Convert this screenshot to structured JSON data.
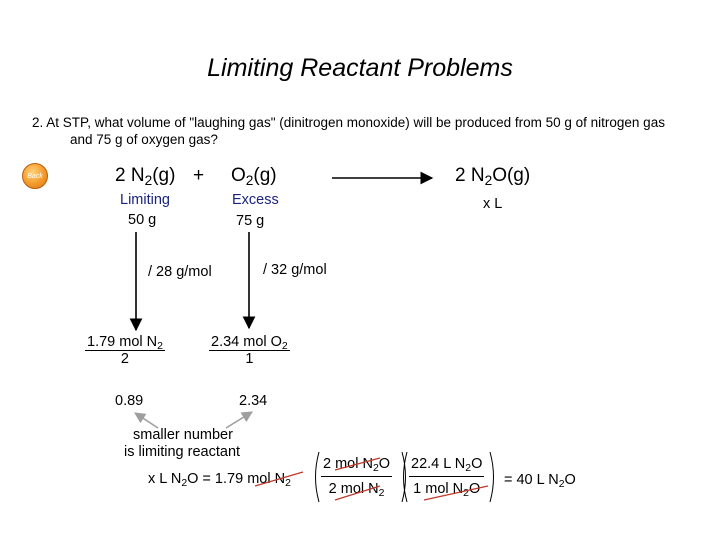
{
  "title": "Limiting Reactant Problems",
  "question": {
    "line1": "2.  At STP, what volume of \"laughing gas\" (dinitrogen monoxide) will be produced from 50 g of nitrogen gas",
    "line2": "and 75 g of oxygen gas?"
  },
  "back_button": {
    "label": "Back"
  },
  "equation": {
    "reactant1": {
      "coef": "2 N",
      "sub": "2",
      "state": "(g)"
    },
    "plus": "+",
    "reactant2": {
      "formula": "O",
      "sub": "2",
      "state": "(g)"
    },
    "product": {
      "coef": "2 N",
      "sub": "2",
      "rest": "O(g)"
    }
  },
  "labels": {
    "limiting": "Limiting",
    "n2_mass": "50 g",
    "excess": "Excess",
    "o2_mass": "75 g",
    "product_unknown": "x L"
  },
  "conversions": {
    "n2_molar": "/ 28 g/mol",
    "o2_molar": "/ 32 g/mol"
  },
  "moles": {
    "n2": {
      "value": "1.79 mol N",
      "sub": "2",
      "coef": "2",
      "ratio": "0.89"
    },
    "o2": {
      "value": "2.34 mol O",
      "sub": "2",
      "coef": "1",
      "ratio": "2.34"
    }
  },
  "note": {
    "line1": "smaller number",
    "line2": "is limiting reactant"
  },
  "calculation": {
    "lhs_pre": "x L N",
    "lhs_sub": "2",
    "lhs_post": "O = 1.79 ",
    "lhs_unit": "mol N",
    "lhs_unit_sub": "2",
    "f1_num_pre": "2 ",
    "f1_num_unit": "mol N",
    "f1_num_sub": "2",
    "f1_num_post": "O",
    "f1_den_pre": "2 ",
    "f1_den_unit": "mol N",
    "f1_den_sub": "2",
    "f2_num_pre": "22.4 L N",
    "f2_num_sub": "2",
    "f2_num_post": "O",
    "f2_den_pre": "1 ",
    "f2_den_unit": "mol N",
    "f2_den_sub": "2",
    "f2_den_post": "O",
    "result_pre": "= 40 L N",
    "result_sub": "2",
    "result_post": "O"
  },
  "colors": {
    "strike": "#c0392b",
    "back_button": "#f39a2a",
    "label_blue": "#1a237e",
    "callout_arrow": "#9e9e9e"
  }
}
